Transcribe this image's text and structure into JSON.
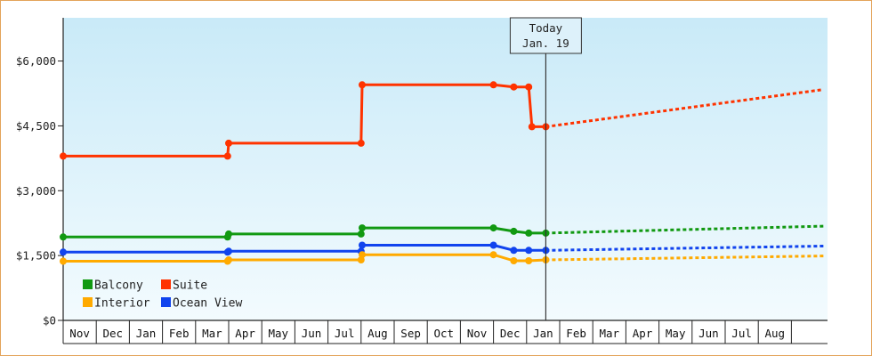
{
  "chart_data": {
    "type": "line",
    "y_ticks": [
      {
        "label": "$0",
        "value": 0
      },
      {
        "label": "$1,500",
        "value": 1500
      },
      {
        "label": "$3,000",
        "value": 3000
      },
      {
        "label": "$4,500",
        "value": 4500
      },
      {
        "label": "$6,000",
        "value": 6000
      }
    ],
    "ylim": [
      0,
      7000
    ],
    "x_start": "2017-11-01",
    "x_end": "2018-09-30",
    "month_labels": [
      "Nov",
      "Dec",
      "Jan",
      "Feb",
      "Mar",
      "Apr",
      "May",
      "Jun",
      "Jul",
      "Aug",
      "Sep",
      "Oct",
      "Nov",
      "Dec",
      "Jan",
      "Feb",
      "Mar",
      "Apr",
      "May",
      "Jun",
      "Jul",
      "Aug"
    ],
    "today": {
      "line1": "Today",
      "line2": "Jan. 19",
      "date": "2018-01-19"
    },
    "legend": [
      "Balcony",
      "Suite",
      "Interior",
      "Ocean View"
    ],
    "series": [
      {
        "name": "Suite",
        "color": "#ff3300",
        "history": [
          [
            "2016-11-01",
            3800
          ],
          [
            "2017-03-31",
            3800
          ],
          [
            "2017-04-01",
            4100
          ],
          [
            "2017-08-01",
            4100
          ],
          [
            "2017-08-02",
            5450
          ],
          [
            "2017-12-01",
            5450
          ],
          [
            "2017-12-20",
            5400
          ],
          [
            "2018-01-03",
            5400
          ],
          [
            "2018-01-06",
            4480
          ],
          [
            "2018-01-19",
            4480
          ]
        ],
        "forecast": [
          [
            "2018-01-19",
            4480
          ],
          [
            "2018-09-30",
            5340
          ]
        ]
      },
      {
        "name": "Balcony",
        "color": "#119911",
        "history": [
          [
            "2016-11-01",
            1930
          ],
          [
            "2017-03-31",
            1930
          ],
          [
            "2017-04-01",
            2000
          ],
          [
            "2017-08-01",
            2000
          ],
          [
            "2017-08-02",
            2140
          ],
          [
            "2017-12-01",
            2140
          ],
          [
            "2017-12-20",
            2060
          ],
          [
            "2018-01-03",
            2020
          ],
          [
            "2018-01-19",
            2020
          ]
        ],
        "forecast": [
          [
            "2018-01-19",
            2020
          ],
          [
            "2018-09-30",
            2180
          ]
        ]
      },
      {
        "name": "Ocean View",
        "color": "#1144ee",
        "history": [
          [
            "2016-11-01",
            1580
          ],
          [
            "2017-03-31",
            1580
          ],
          [
            "2017-04-01",
            1600
          ],
          [
            "2017-08-01",
            1600
          ],
          [
            "2017-08-02",
            1740
          ],
          [
            "2017-12-01",
            1740
          ],
          [
            "2017-12-20",
            1620
          ],
          [
            "2018-01-03",
            1620
          ],
          [
            "2018-01-19",
            1620
          ]
        ],
        "forecast": [
          [
            "2018-01-19",
            1620
          ],
          [
            "2018-09-30",
            1720
          ]
        ]
      },
      {
        "name": "Interior",
        "color": "#ffaa00",
        "history": [
          [
            "2016-11-01",
            1370
          ],
          [
            "2017-03-31",
            1370
          ],
          [
            "2017-04-01",
            1400
          ],
          [
            "2017-08-01",
            1400
          ],
          [
            "2017-08-02",
            1520
          ],
          [
            "2017-12-01",
            1520
          ],
          [
            "2017-12-20",
            1380
          ],
          [
            "2018-01-03",
            1380
          ],
          [
            "2018-01-19",
            1400
          ]
        ],
        "forecast": [
          [
            "2018-01-19",
            1400
          ],
          [
            "2018-09-30",
            1490
          ]
        ]
      }
    ]
  }
}
